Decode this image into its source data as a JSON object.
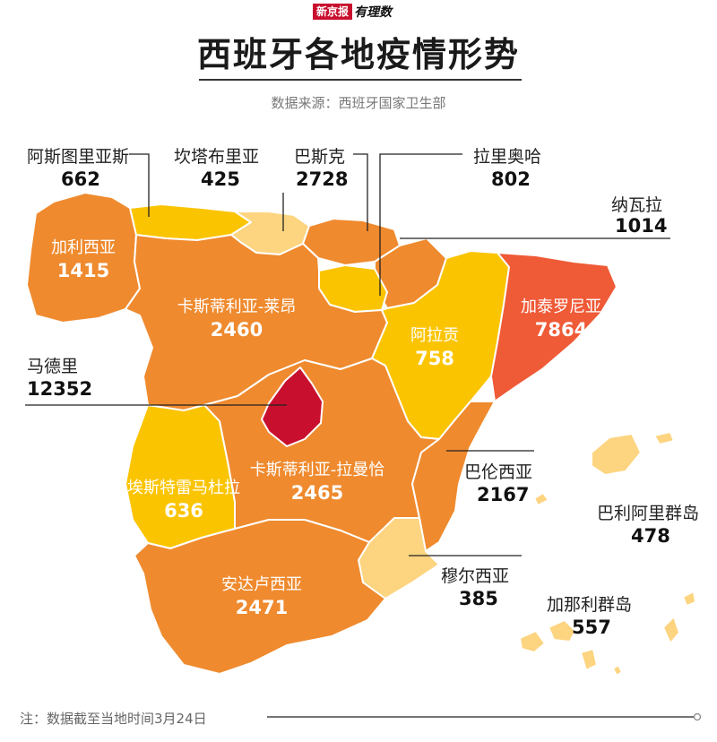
{
  "brand": {
    "left": "新京报",
    "right": "有理数"
  },
  "title": "西班牙各地疫情形势",
  "source": "数据来源：西班牙国家卫生部",
  "note": "注：数据截至当地时间3月24日",
  "colors": {
    "very_low": "#fdd47f",
    "low": "#fbc400",
    "mid": "#ef8a2e",
    "high": "#ef5a37",
    "highest": "#c8102e"
  },
  "regions": {
    "asturias": {
      "name": "阿斯图里亚斯",
      "value": "662"
    },
    "cantabria": {
      "name": "坎塔布里亚",
      "value": "425"
    },
    "basque": {
      "name": "巴斯克",
      "value": "2728"
    },
    "rioja": {
      "name": "拉里奥哈",
      "value": "802"
    },
    "navarra": {
      "name": "纳瓦拉",
      "value": "1014"
    },
    "galicia": {
      "name": "加利西亚",
      "value": "1415"
    },
    "castilla_leon": {
      "name": "卡斯蒂利亚-莱昂",
      "value": "2460"
    },
    "aragon": {
      "name": "阿拉贡",
      "value": "758"
    },
    "catalonia": {
      "name": "加泰罗尼亚",
      "value": "7864"
    },
    "madrid": {
      "name": "马德里",
      "value": "12352"
    },
    "extremadura": {
      "name": "埃斯特雷马杜拉",
      "value": "636"
    },
    "castilla_mancha": {
      "name": "卡斯蒂利亚-拉曼恰",
      "value": "2465"
    },
    "valencia": {
      "name": "巴伦西亚",
      "value": "2167"
    },
    "balearic": {
      "name": "巴利阿里群岛",
      "value": "478"
    },
    "murcia": {
      "name": "穆尔西亚",
      "value": "385"
    },
    "andalusia": {
      "name": "安达卢西亚",
      "value": "2471"
    },
    "canary": {
      "name": "加那利群岛",
      "value": "557"
    }
  }
}
